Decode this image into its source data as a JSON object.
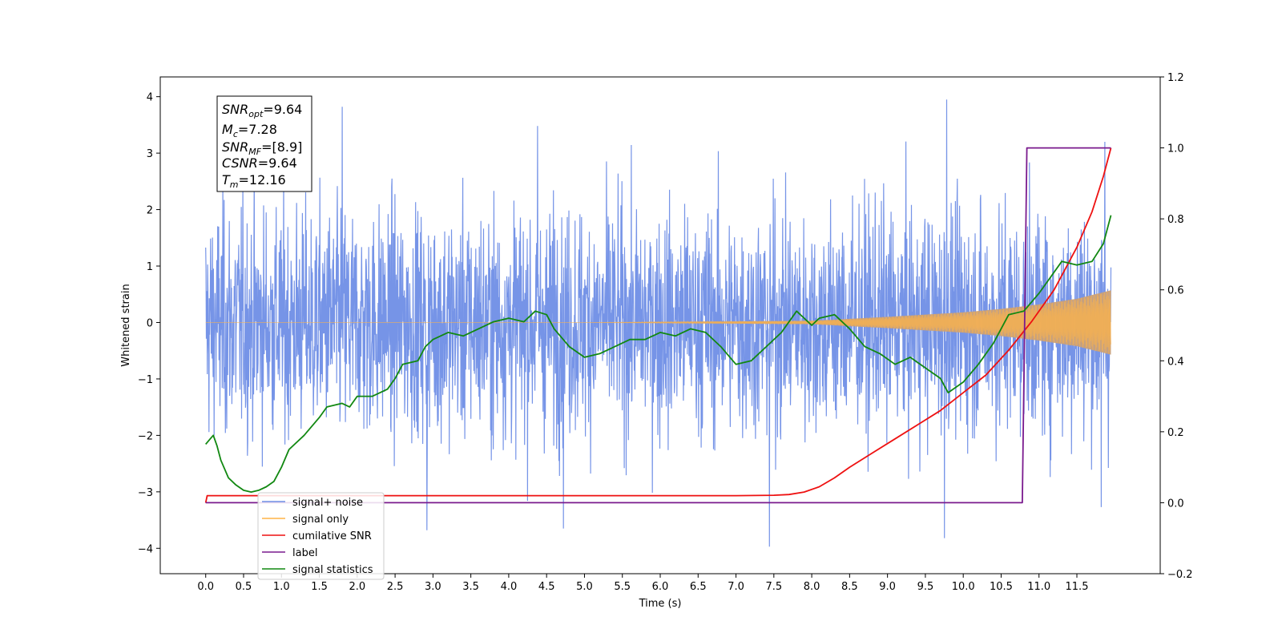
{
  "chart_data": {
    "type": "line",
    "xlabel": "Time (s)",
    "ylabel": "Whitened strain",
    "xlim": [
      -0.6,
      12.6
    ],
    "ylim": [
      -4.45,
      4.35
    ],
    "y2lim": [
      -0.2,
      1.2
    ],
    "x_ticks": [
      "0.0",
      "0.5",
      "1.0",
      "1.5",
      "2.0",
      "2.5",
      "3.0",
      "3.5",
      "4.0",
      "4.5",
      "5.0",
      "5.5",
      "6.0",
      "6.5",
      "7.0",
      "7.5",
      "8.0",
      "8.5",
      "9.0",
      "9.5",
      "10.0",
      "10.5",
      "11.0",
      "11.5"
    ],
    "y_ticks": [
      "4",
      "3",
      "2",
      "1",
      "0",
      "−1",
      "−2",
      "−3",
      "−4"
    ],
    "y2_ticks": [
      "1.2",
      "1.0",
      "0.8",
      "0.6",
      "0.4",
      "0.2",
      "0.0",
      "−0.2"
    ],
    "grid": false,
    "legend_position": "lower-left",
    "annotation": {
      "snr_opt": {
        "sym": "SNR",
        "sub": "opt",
        "val": "=9.64"
      },
      "mc": {
        "sym": "M",
        "sub": "c",
        "val": "=7.28"
      },
      "snr_mf": {
        "sym": "SNR",
        "sub": "MF",
        "val": "=[8.9]"
      },
      "csnr": {
        "sym": "CSNR",
        "val": "=9.64"
      },
      "tm": {
        "sym": "T",
        "sub": "m",
        "val": "=12.16"
      }
    },
    "series": [
      {
        "name": "signal+ noise",
        "color": "#6f8ee6",
        "description_axis": "left",
        "x_range": [
          0.0,
          11.95
        ],
        "typical_amplitude": 1.0,
        "max_peaks": [
          [
            1.8,
            3.82
          ],
          [
            4.38,
            3.48
          ],
          [
            9.78,
            3.95
          ],
          [
            11.87,
            3.2
          ]
        ],
        "min_peaks": [
          [
            2.92,
            -3.68
          ],
          [
            4.72,
            -3.65
          ],
          [
            7.44,
            -3.97
          ],
          [
            9.75,
            -3.82
          ],
          [
            11.82,
            -3.27
          ]
        ]
      },
      {
        "name": "signal only",
        "color": "#ffb347",
        "fill_color": "#c8a07a",
        "axis": "left",
        "x_range": [
          0.0,
          11.95
        ],
        "envelope": [
          [
            0.0,
            0.0
          ],
          [
            5.0,
            0.0
          ],
          [
            8.0,
            0.03
          ],
          [
            9.0,
            0.1
          ],
          [
            10.0,
            0.18
          ],
          [
            10.5,
            0.24
          ],
          [
            11.0,
            0.32
          ],
          [
            11.5,
            0.42
          ],
          [
            11.95,
            0.57
          ]
        ]
      },
      {
        "name": "cumilative SNR",
        "color": "#ee1111",
        "axis": "right",
        "points": [
          [
            0.0,
            0.0
          ],
          [
            0.02,
            0.02
          ],
          [
            0.5,
            0.02
          ],
          [
            3.0,
            0.02
          ],
          [
            5.0,
            0.02
          ],
          [
            7.0,
            0.02
          ],
          [
            7.5,
            0.021
          ],
          [
            7.7,
            0.023
          ],
          [
            7.9,
            0.03
          ],
          [
            8.1,
            0.045
          ],
          [
            8.3,
            0.07
          ],
          [
            8.5,
            0.1
          ],
          [
            8.8,
            0.14
          ],
          [
            9.1,
            0.18
          ],
          [
            9.4,
            0.22
          ],
          [
            9.7,
            0.26
          ],
          [
            10.0,
            0.31
          ],
          [
            10.3,
            0.36
          ],
          [
            10.6,
            0.43
          ],
          [
            10.9,
            0.51
          ],
          [
            11.2,
            0.6
          ],
          [
            11.5,
            0.72
          ],
          [
            11.7,
            0.82
          ],
          [
            11.85,
            0.92
          ],
          [
            11.95,
            1.0
          ]
        ]
      },
      {
        "name": "label",
        "color": "#7a1a8e",
        "axis": "right",
        "points": [
          [
            0.0,
            0.0
          ],
          [
            10.78,
            0.0
          ],
          [
            10.84,
            1.0
          ],
          [
            11.95,
            1.0
          ]
        ]
      },
      {
        "name": "signal statistics",
        "color": "#118811",
        "axis": "right",
        "points": [
          [
            0.0,
            0.165
          ],
          [
            0.06,
            0.18
          ],
          [
            0.1,
            0.19
          ],
          [
            0.15,
            0.16
          ],
          [
            0.2,
            0.12
          ],
          [
            0.3,
            0.07
          ],
          [
            0.4,
            0.05
          ],
          [
            0.5,
            0.035
          ],
          [
            0.6,
            0.03
          ],
          [
            0.7,
            0.035
          ],
          [
            0.8,
            0.045
          ],
          [
            0.9,
            0.06
          ],
          [
            1.0,
            0.1
          ],
          [
            1.1,
            0.15
          ],
          [
            1.3,
            0.19
          ],
          [
            1.5,
            0.24
          ],
          [
            1.6,
            0.27
          ],
          [
            1.8,
            0.28
          ],
          [
            1.9,
            0.27
          ],
          [
            2.0,
            0.3
          ],
          [
            2.2,
            0.3
          ],
          [
            2.4,
            0.32
          ],
          [
            2.5,
            0.35
          ],
          [
            2.6,
            0.39
          ],
          [
            2.8,
            0.4
          ],
          [
            2.9,
            0.44
          ],
          [
            3.0,
            0.46
          ],
          [
            3.2,
            0.48
          ],
          [
            3.4,
            0.47
          ],
          [
            3.6,
            0.49
          ],
          [
            3.8,
            0.51
          ],
          [
            4.0,
            0.52
          ],
          [
            4.2,
            0.51
          ],
          [
            4.35,
            0.54
          ],
          [
            4.5,
            0.53
          ],
          [
            4.6,
            0.49
          ],
          [
            4.8,
            0.44
          ],
          [
            5.0,
            0.41
          ],
          [
            5.2,
            0.42
          ],
          [
            5.4,
            0.44
          ],
          [
            5.6,
            0.46
          ],
          [
            5.8,
            0.46
          ],
          [
            6.0,
            0.48
          ],
          [
            6.2,
            0.47
          ],
          [
            6.4,
            0.49
          ],
          [
            6.6,
            0.48
          ],
          [
            6.8,
            0.44
          ],
          [
            7.0,
            0.39
          ],
          [
            7.2,
            0.4
          ],
          [
            7.4,
            0.44
          ],
          [
            7.6,
            0.48
          ],
          [
            7.8,
            0.54
          ],
          [
            7.9,
            0.52
          ],
          [
            8.0,
            0.5
          ],
          [
            8.1,
            0.52
          ],
          [
            8.3,
            0.53
          ],
          [
            8.5,
            0.49
          ],
          [
            8.7,
            0.44
          ],
          [
            8.9,
            0.42
          ],
          [
            9.1,
            0.39
          ],
          [
            9.3,
            0.41
          ],
          [
            9.5,
            0.38
          ],
          [
            9.7,
            0.35
          ],
          [
            9.8,
            0.31
          ],
          [
            10.0,
            0.34
          ],
          [
            10.2,
            0.39
          ],
          [
            10.4,
            0.45
          ],
          [
            10.6,
            0.53
          ],
          [
            10.8,
            0.54
          ],
          [
            11.0,
            0.59
          ],
          [
            11.1,
            0.62
          ],
          [
            11.3,
            0.68
          ],
          [
            11.5,
            0.67
          ],
          [
            11.7,
            0.68
          ],
          [
            11.85,
            0.73
          ],
          [
            11.95,
            0.81
          ]
        ]
      }
    ]
  }
}
